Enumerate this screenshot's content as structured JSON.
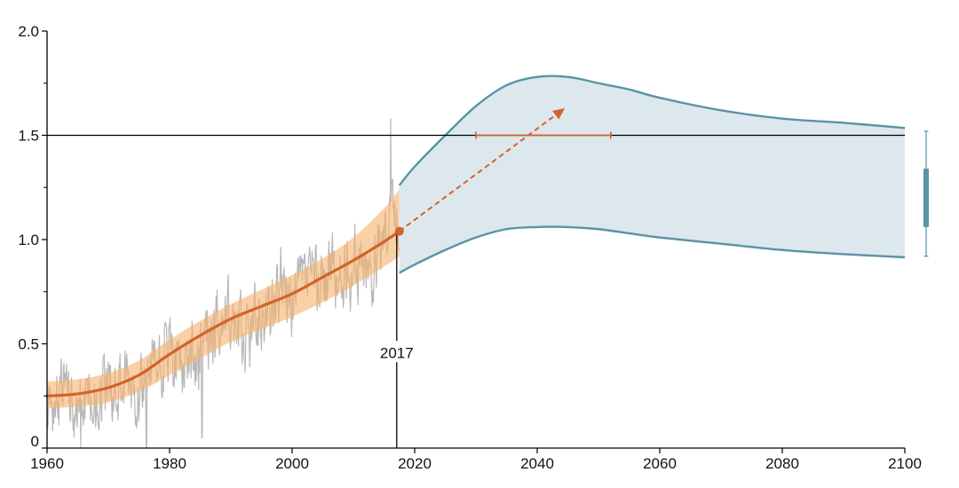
{
  "chart_data": {
    "type": "line",
    "title": "",
    "xlabel": "",
    "ylabel": "",
    "xlim": [
      1960,
      2100
    ],
    "ylim": [
      0,
      2.0
    ],
    "x_ticks": [
      1960,
      1980,
      2000,
      2020,
      2040,
      2060,
      2080,
      2100
    ],
    "y_ticks": [
      0,
      0.5,
      1.0,
      1.5,
      2.0
    ],
    "y_tick_labels": [
      "0",
      "0.5",
      "1.0",
      "1.5",
      "2.0"
    ],
    "y_minor_ticks": [
      0.25,
      0.75,
      1.25,
      1.75
    ],
    "grid": false,
    "reference_line": {
      "y": 1.5,
      "x_range": [
        1960,
        2100
      ]
    },
    "annotations": [
      {
        "text": "2017",
        "x": 2017,
        "y": 0.45
      }
    ],
    "series": [
      {
        "kind": "monthly_observations",
        "color": "#b8b8b8",
        "x_start": 1960,
        "x_end": 2017.5,
        "points_per_year": 12,
        "anchors": [
          [
            1960,
            0.24
          ],
          [
            1962,
            0.27
          ],
          [
            1964,
            0.25
          ],
          [
            1966,
            0.24
          ],
          [
            1968,
            0.25
          ],
          [
            1970,
            0.28
          ],
          [
            1972,
            0.28
          ],
          [
            1974,
            0.27
          ],
          [
            1976,
            0.32
          ],
          [
            1978,
            0.36
          ],
          [
            1980,
            0.46
          ],
          [
            1982,
            0.45
          ],
          [
            1984,
            0.44
          ],
          [
            1986,
            0.49
          ],
          [
            1988,
            0.58
          ],
          [
            1990,
            0.63
          ],
          [
            1992,
            0.53
          ],
          [
            1994,
            0.6
          ],
          [
            1996,
            0.62
          ],
          [
            1998,
            0.76
          ],
          [
            2000,
            0.68
          ],
          [
            2002,
            0.79
          ],
          [
            2004,
            0.8
          ],
          [
            2006,
            0.85
          ],
          [
            2008,
            0.78
          ],
          [
            2010,
            0.9
          ],
          [
            2012,
            0.86
          ],
          [
            2014,
            0.92
          ],
          [
            2016,
            1.22
          ],
          [
            2017.5,
            1.05
          ]
        ],
        "noise_amplitude": 0.14,
        "spikes": [
          {
            "x": 1965.5,
            "y": 0.0
          },
          {
            "x": 1976.2,
            "y": 0.0
          },
          {
            "x": 1985.3,
            "y": 0.05
          },
          {
            "x": 2016.1,
            "y": 1.58
          }
        ]
      },
      {
        "kind": "uncertainty_band",
        "color": "#f6b26b",
        "opacity": 0.6,
        "x": [
          1960,
          1965,
          1970,
          1975,
          1980,
          1985,
          1990,
          1995,
          2000,
          2005,
          2010,
          2015,
          2017.5
        ],
        "lower": [
          0.19,
          0.2,
          0.22,
          0.27,
          0.35,
          0.43,
          0.51,
          0.57,
          0.63,
          0.7,
          0.78,
          0.87,
          0.92
        ],
        "upper": [
          0.32,
          0.33,
          0.36,
          0.42,
          0.52,
          0.61,
          0.69,
          0.76,
          0.83,
          0.91,
          1.01,
          1.15,
          1.24
        ]
      },
      {
        "kind": "trend_line",
        "color": "#d4622a",
        "x": [
          1960,
          1965,
          1970,
          1975,
          1980,
          1985,
          1990,
          1995,
          2000,
          2005,
          2010,
          2015,
          2017.5
        ],
        "values": [
          0.25,
          0.26,
          0.29,
          0.35,
          0.45,
          0.54,
          0.62,
          0.68,
          0.74,
          0.82,
          0.9,
          0.99,
          1.04
        ]
      },
      {
        "kind": "current_point",
        "color": "#d4622a",
        "x": 2017.5,
        "value": 1.04
      },
      {
        "kind": "projected_trend_arrow",
        "color": "#d4622a",
        "dashed": true,
        "from": [
          2017.5,
          1.04
        ],
        "to": [
          2044.5,
          1.63
        ]
      },
      {
        "kind": "crossing_range",
        "color": "#d4622a",
        "y": 1.5,
        "x_range": [
          2030,
          2052
        ]
      },
      {
        "kind": "projection_band",
        "fill": "#dce8ee",
        "stroke": "#5a93a6",
        "x": [
          2017.5,
          2020,
          2025,
          2030,
          2035,
          2040,
          2045,
          2050,
          2055,
          2060,
          2070,
          2080,
          2090,
          2100
        ],
        "upper": [
          1.26,
          1.35,
          1.5,
          1.64,
          1.74,
          1.78,
          1.78,
          1.75,
          1.72,
          1.68,
          1.62,
          1.58,
          1.56,
          1.535
        ],
        "lower": [
          0.84,
          0.88,
          0.95,
          1.01,
          1.05,
          1.06,
          1.06,
          1.05,
          1.03,
          1.01,
          0.98,
          0.95,
          0.93,
          0.915
        ]
      },
      {
        "kind": "range_bar_2100",
        "color": "#5a93a6",
        "x_position": "right-of-axis",
        "whisker_range": [
          0.92,
          1.52
        ],
        "box_range": [
          1.06,
          1.34
        ]
      }
    ]
  }
}
